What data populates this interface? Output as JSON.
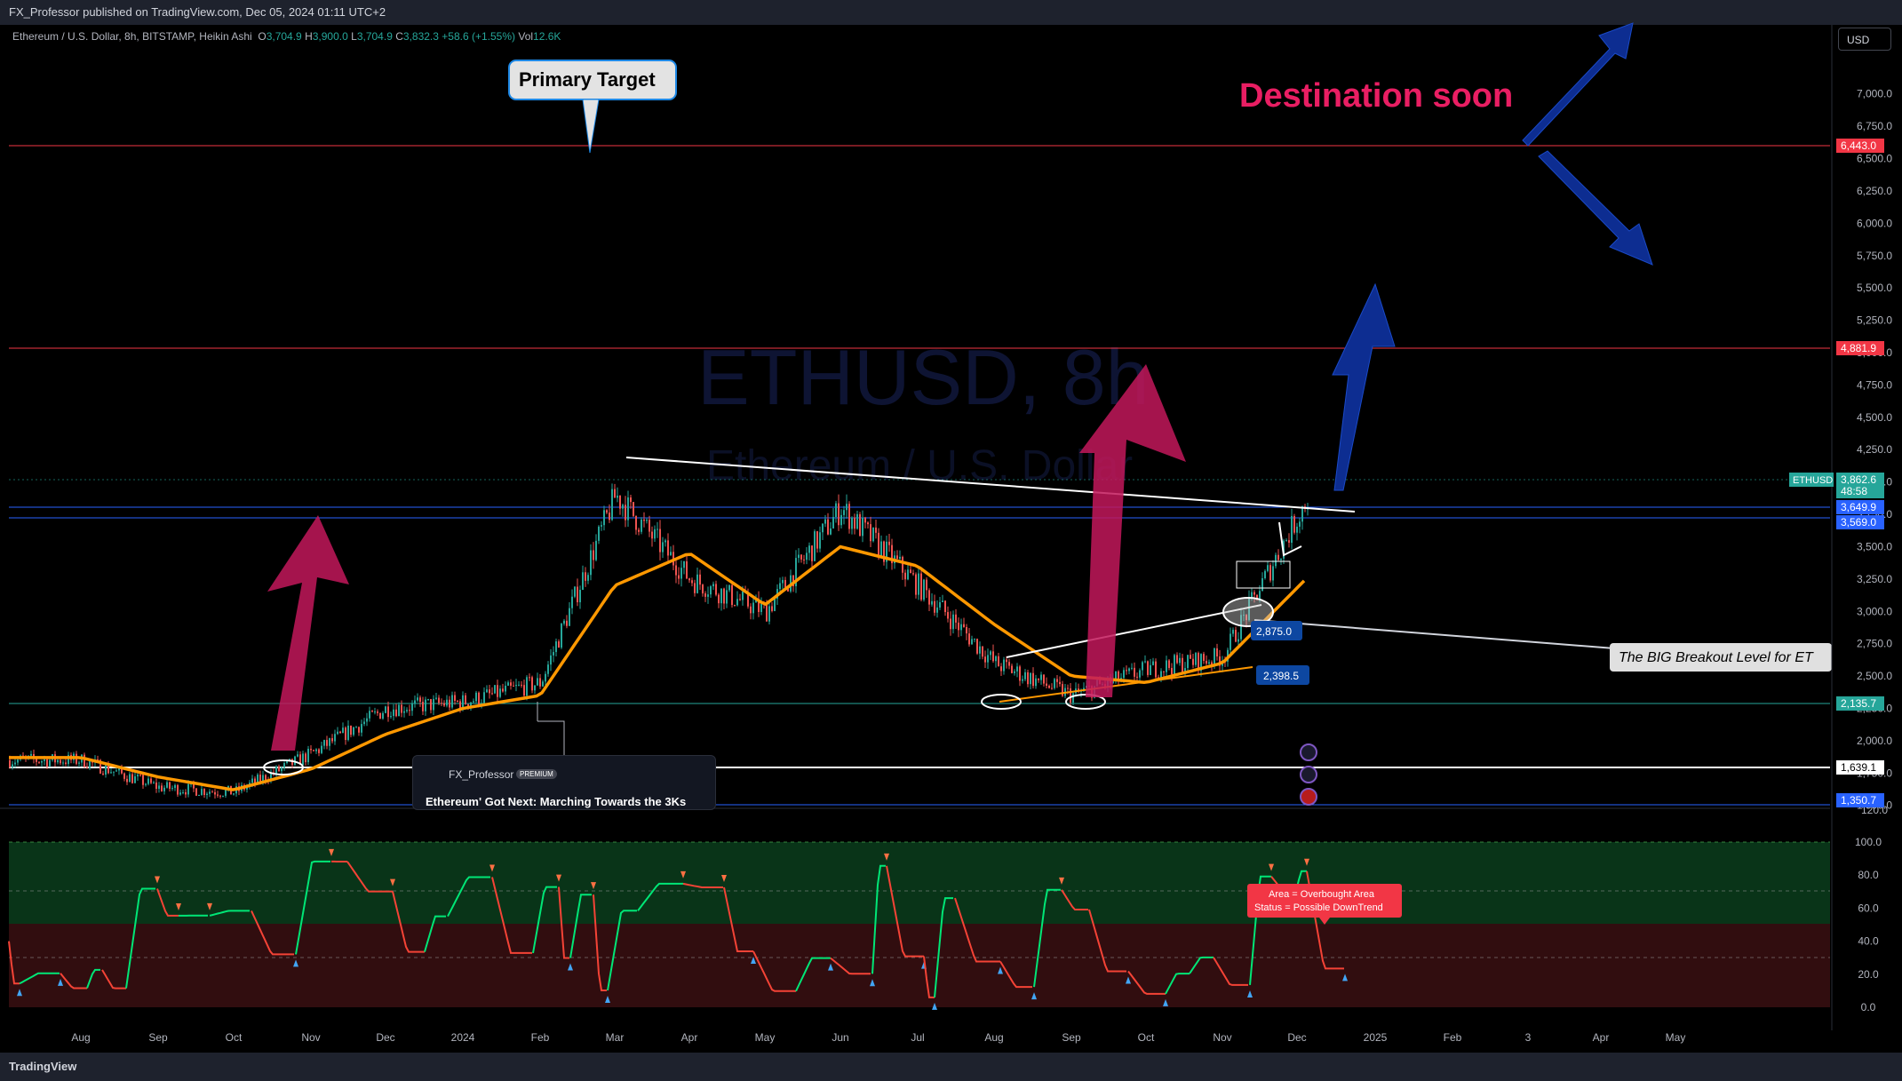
{
  "header": {
    "publisher": "FX_Professor published on TradingView.com, Dec 05, 2024 01:11 UTC+2"
  },
  "legend": {
    "symbol": "Ethereum / U.S. Dollar, 8h, BITSTAMP, Heikin Ashi",
    "open_label": "O",
    "open": "3,704.9",
    "high_label": "H",
    "high": "3,900.0",
    "low_label": "L",
    "low": "3,704.9",
    "close_label": "C",
    "close": "3,832.3",
    "change": "+58.6 (+1.55%)",
    "vol_label": "Vol",
    "vol": "12.6K"
  },
  "currency_button": "USD",
  "watermark": {
    "line1": "ETHUSD, 8h",
    "line2": "Ethereum / U.S. Dollar"
  },
  "annotations": {
    "primary_target": "Primary Target",
    "destination": "Destination soon",
    "breakout": "The BIG Breakout Level for ET",
    "tag_2875": "2,875.0",
    "tag_2398": "2,398.5",
    "overbought_line1": "Area = Overbought Area",
    "overbought_line2": "Status =  Possible DownTrend"
  },
  "price_axis": {
    "ticks": [
      "7,000.0",
      "6,750.0",
      "6,500.0",
      "6,250.0",
      "6,000.0",
      "5,750.0",
      "5,500.0",
      "5,250.0",
      "5,000.0",
      "4,750.0",
      "4,500.0",
      "4,250.0",
      "4,000.0",
      "3,750.0",
      "3,500.0",
      "3,250.0",
      "3,000.0",
      "2,750.0",
      "2,500.0",
      "2,250.0",
      "2,000.0",
      "1,750.0",
      "1,500.0",
      "120.0"
    ],
    "badges": [
      {
        "text": "6,443.0",
        "color": "#f23645"
      },
      {
        "text": "4,881.9",
        "color": "#f23645"
      },
      {
        "text": "3,862.6",
        "color": "#26a69a"
      },
      {
        "text": "48:58",
        "color": "#26a69a"
      },
      {
        "text": "3,649.9",
        "color": "#2962ff"
      },
      {
        "text": "3,569.0",
        "color": "#2962ff"
      },
      {
        "text": "2,135.7",
        "color": "#26a69a"
      },
      {
        "text": "1,639.1",
        "color": "#ffffff"
      },
      {
        "text": "1,350.7",
        "color": "#2962ff"
      }
    ],
    "symbol_tag": "ETHUSD"
  },
  "osc_axis": {
    "ticks": [
      "100.0",
      "80.0",
      "60.0",
      "40.0",
      "20.0",
      "0.0"
    ]
  },
  "time_axis": {
    "labels": [
      "Aug",
      "Sep",
      "Oct",
      "Nov",
      "Dec",
      "2024",
      "Feb",
      "Mar",
      "Apr",
      "May",
      "Jun",
      "Jul",
      "Aug",
      "Sep",
      "Oct",
      "Nov",
      "Dec",
      "2025",
      "Feb",
      "3",
      "Apr",
      "May"
    ]
  },
  "idea": {
    "author": "FX_Professor",
    "badge": "PREMIUM",
    "title": "Ethereum' Got Next: Marching Towards the 3Ks"
  },
  "footer": {
    "brand": "TradingView"
  },
  "chart_data": {
    "type": "line",
    "title": "Ethereum / U.S. Dollar, 8h, BITSTAMP, Heikin Ashi",
    "ylim": [
      1200,
      7200
    ],
    "x": [
      "Aug 2023",
      "Sep 2023",
      "Oct 2023",
      "Nov 2023",
      "Dec 2023",
      "Jan 2024",
      "Feb 2024",
      "Mar 2024",
      "Apr 2024",
      "May 2024",
      "Jun 2024",
      "Jul 2024",
      "Aug 2024",
      "Sep 2024",
      "Oct 2024",
      "Nov 2024",
      "Dec 2024"
    ],
    "series": [
      {
        "values": [
          1850,
          1640,
          1600,
          1900,
          2250,
          2300,
          2450,
          3900,
          3250,
          3000,
          3800,
          3200,
          2600,
          2350,
          2550,
          2650,
          3862.6
        ],
        "color": "#26a69a"
      },
      {
        "values": [
          1870,
          1720,
          1620,
          1780,
          2050,
          2250,
          2350,
          3200,
          3450,
          3050,
          3500,
          3350,
          2900,
          2500,
          2450,
          2600,
          3250
        ],
        "color": "#ff9800"
      }
    ],
    "levels": [
      6443.0,
      4881.9,
      3649.9,
      3569.0,
      2135.7,
      1639.1,
      1350.7
    ],
    "oscillator": {
      "ylim": [
        0,
        100
      ],
      "overbought": 50,
      "grid": [
        30,
        70
      ]
    },
    "grid": false,
    "colors": {
      "up": "#26a69a",
      "down": "#ef5350",
      "ma": "#ff9800",
      "target_arrow": "#c2185b",
      "projection_arrow": "#0d2d91"
    }
  }
}
